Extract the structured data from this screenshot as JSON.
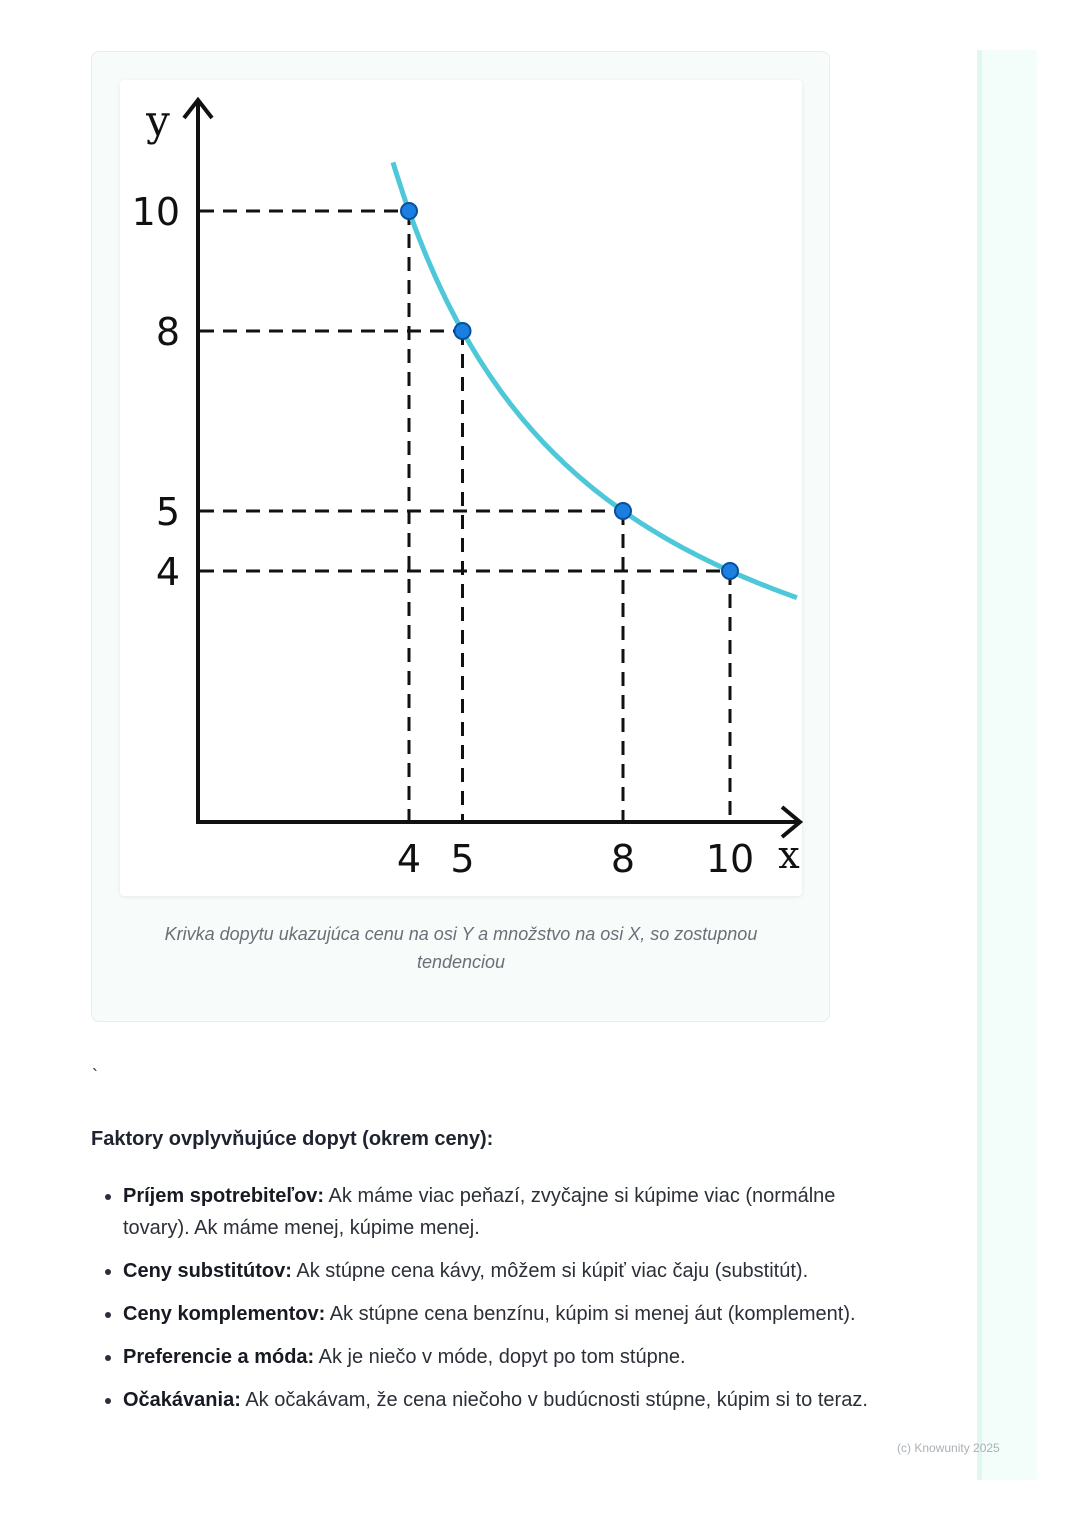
{
  "figure": {
    "caption": "Krivka dopytu ukazujúca cenu na osi Y a množstvo na osi X, so zostupnou tendenciou"
  },
  "chart_data": {
    "type": "line",
    "xlabel": "x",
    "ylabel": "y",
    "x_ticks": [
      "4",
      "5",
      "8",
      "10"
    ],
    "y_ticks": [
      "10",
      "8",
      "5",
      "4"
    ],
    "points": [
      {
        "x": 4,
        "y": 10
      },
      {
        "x": 5,
        "y": 8
      },
      {
        "x": 8,
        "y": 5
      },
      {
        "x": 10,
        "y": 4
      }
    ],
    "curve_color": "#4ec8d8",
    "point_color": "#1a7fe0",
    "grid": false
  },
  "stray_mark": "`",
  "section": {
    "heading": "Faktory ovplyvňujúce dopyt (okrem ceny):",
    "items": [
      {
        "term": "Príjem spotrebiteľov:",
        "text": " Ak máme viac peňazí, zvyčajne si kúpime viac (normálne tovary). Ak máme menej, kúpime menej."
      },
      {
        "term": "Ceny substitútov:",
        "text": " Ak stúpne cena kávy, môžem si kúpiť viac čaju (substitút)."
      },
      {
        "term": "Ceny komplementov:",
        "text": " Ak stúpne cena benzínu, kúpim si menej áut (komplement)."
      },
      {
        "term": "Preferencie a móda:",
        "text": " Ak je niečo v móde, dopyt po tom stúpne."
      },
      {
        "term": "Očakávania:",
        "text": " Ak očakávam, že cena niečoho v budúcnosti stúpne, kúpim si to teraz."
      }
    ]
  },
  "watermark": "(c) Knowunity 2025"
}
